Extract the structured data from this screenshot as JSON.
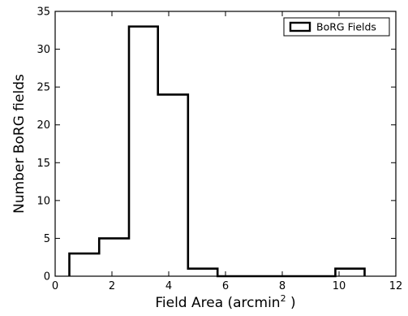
{
  "chart_data": {
    "type": "bar",
    "subtype": "step-histogram",
    "xlabel_prefix": "Field Area (arcmin",
    "xlabel_sup": "2",
    "xlabel_suffix": " )",
    "ylabel": "Number BoRG fields",
    "xlim": [
      0,
      12
    ],
    "ylim": [
      0,
      35
    ],
    "xticks": [
      0,
      2,
      4,
      6,
      8,
      10,
      12
    ],
    "yticks": [
      0,
      5,
      10,
      15,
      20,
      25,
      30,
      35
    ],
    "grid": false,
    "legend_position": "top-right",
    "series": [
      {
        "name": "BoRG Fields",
        "color": "#000000",
        "bins": [
          {
            "x0": 0.5,
            "x1": 1.55,
            "count": 3
          },
          {
            "x0": 1.55,
            "x1": 2.6,
            "count": 5
          },
          {
            "x0": 2.6,
            "x1": 3.62,
            "count": 33
          },
          {
            "x0": 3.62,
            "x1": 4.68,
            "count": 24
          },
          {
            "x0": 4.68,
            "x1": 5.72,
            "count": 1
          },
          {
            "x0": 5.72,
            "x1": 6.77,
            "count": 0
          },
          {
            "x0": 6.77,
            "x1": 7.8,
            "count": 0
          },
          {
            "x0": 7.8,
            "x1": 8.83,
            "count": 0
          },
          {
            "x0": 8.83,
            "x1": 9.87,
            "count": 0
          },
          {
            "x0": 9.87,
            "x1": 10.9,
            "count": 1
          }
        ]
      }
    ]
  }
}
